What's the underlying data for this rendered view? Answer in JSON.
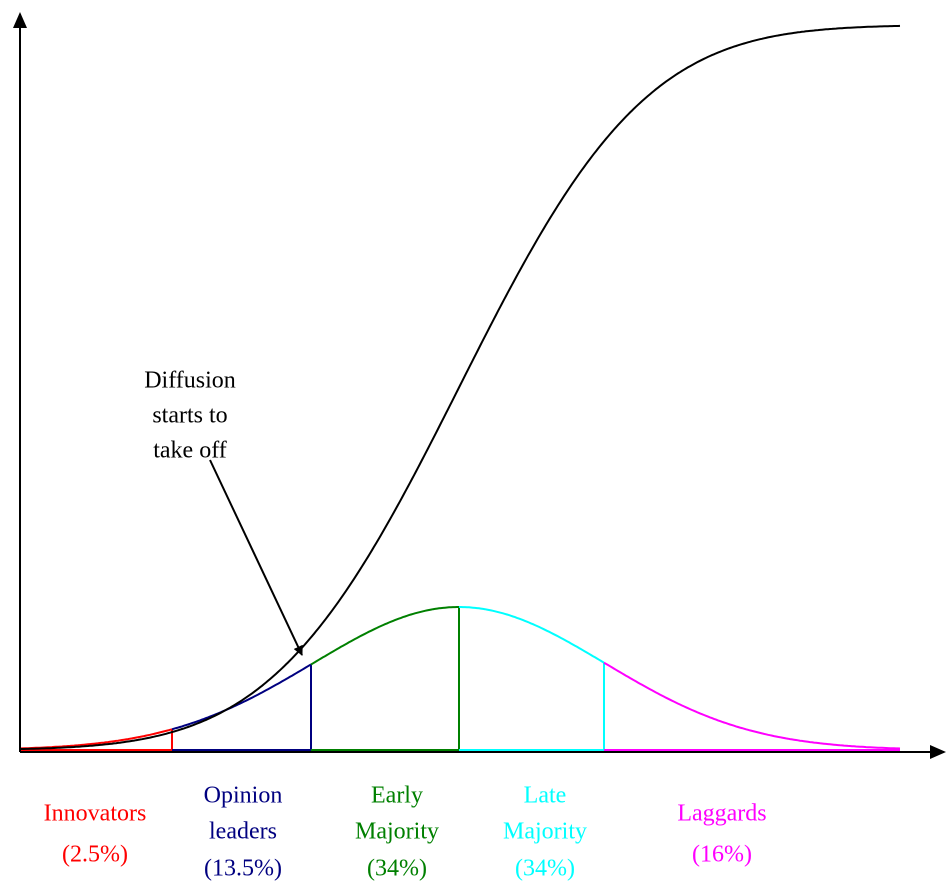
{
  "annotation": [
    "Diffusion",
    "starts to",
    "take off"
  ],
  "segments": [
    {
      "label": [
        "Innovators"
      ],
      "share": "(2.5%)"
    },
    {
      "label": [
        "Opinion",
        "leaders"
      ],
      "share": "(13.5%)"
    },
    {
      "label": [
        "Early",
        "Majority"
      ],
      "share": "(34%)"
    },
    {
      "label": [
        "Late",
        "Majority"
      ],
      "share": "(34%)"
    },
    {
      "label": [
        "Laggards"
      ],
      "share": "(16%)"
    }
  ]
}
